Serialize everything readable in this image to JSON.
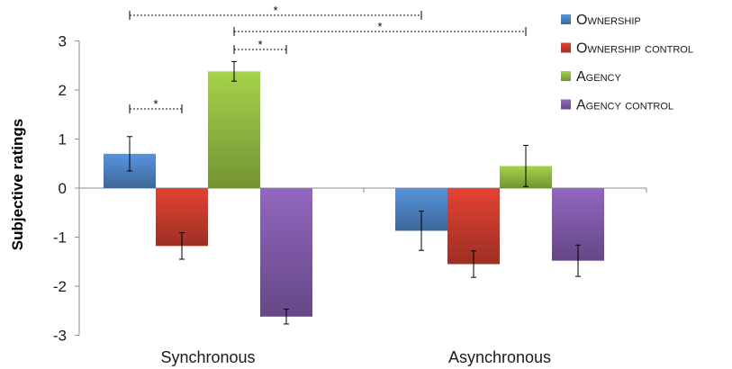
{
  "chart_data": {
    "type": "bar",
    "categories": [
      "Synchronous",
      "Asynchronous"
    ],
    "series": [
      {
        "name": "Ownership",
        "values": [
          0.7,
          -0.87
        ],
        "errors": [
          0.35,
          0.4
        ],
        "color": "#4a7ebb"
      },
      {
        "name": "Ownership control",
        "values": [
          -1.18,
          -1.55
        ],
        "errors": [
          0.27,
          0.27
        ],
        "color": "#c0392b"
      },
      {
        "name": "Agency",
        "values": [
          2.38,
          0.45
        ],
        "errors": [
          0.2,
          0.42
        ],
        "color": "#8cb33e"
      },
      {
        "name": "Agency control",
        "values": [
          -2.62,
          -1.48
        ],
        "errors": [
          0.15,
          0.32
        ],
        "color": "#7b57a3"
      }
    ],
    "ylabel": "Subjective ratings",
    "xlabel": "",
    "ylim": [
      -3,
      3
    ],
    "yticks": [
      "3",
      "2",
      "1",
      "0",
      "-1",
      "-2",
      "-3"
    ],
    "grid": false,
    "legend": "top-right",
    "significance": [
      {
        "label": "*",
        "from": {
          "category": 0,
          "series": 0
        },
        "to": {
          "category": 1,
          "series": 0
        }
      },
      {
        "label": "*",
        "from": {
          "category": 0,
          "series": 2
        },
        "to": {
          "category": 1,
          "series": 2
        }
      },
      {
        "label": "*",
        "from": {
          "category": 0,
          "series": 2
        },
        "to": {
          "category": 0,
          "series": 3
        }
      },
      {
        "label": "*",
        "from": {
          "category": 0,
          "series": 0
        },
        "to": {
          "category": 0,
          "series": 1
        }
      }
    ]
  }
}
